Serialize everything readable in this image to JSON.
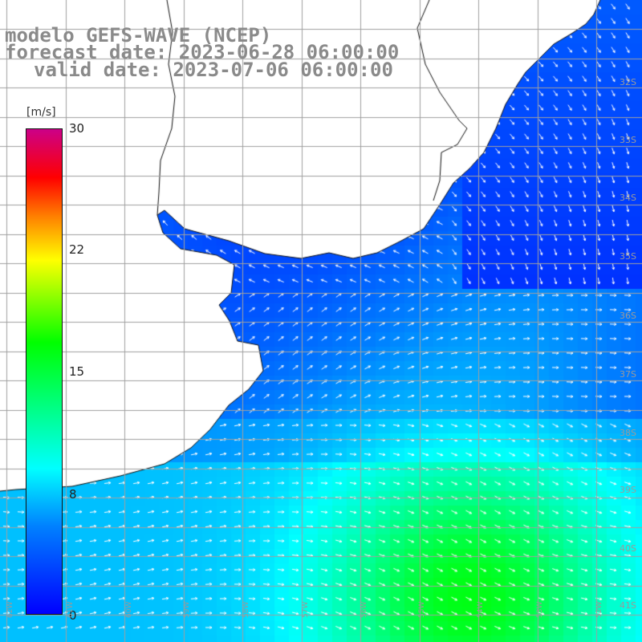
{
  "title": {
    "line1": "modelo GEFS-WAVE (NCEP)",
    "line2": "forecast date: 2023-06-28 06:00:00",
    "line3": "valid date: 2023-07-06 06:00:00"
  },
  "colorbar": {
    "unit": "[m/s]",
    "ticks": [
      {
        "label": "30",
        "value": 30
      },
      {
        "label": "22",
        "value": 22
      },
      {
        "label": "15",
        "value": 15
      },
      {
        "label": "8",
        "value": 8
      },
      {
        "label": "0",
        "value": 0
      }
    ]
  },
  "lat_labels": [
    "32S",
    "33S",
    "34S",
    "35S",
    "36S",
    "37S",
    "38S",
    "39S",
    "40S",
    "41S"
  ],
  "lon_labels": [
    "62W",
    "61W",
    "60W",
    "59W",
    "58W",
    "57W",
    "56W",
    "55W",
    "54W",
    "53W",
    "52W"
  ],
  "colors": {
    "land": "#ffffff",
    "coast": "#111111",
    "grid": "#a0a0a0",
    "arrow": "#ffffff"
  }
}
